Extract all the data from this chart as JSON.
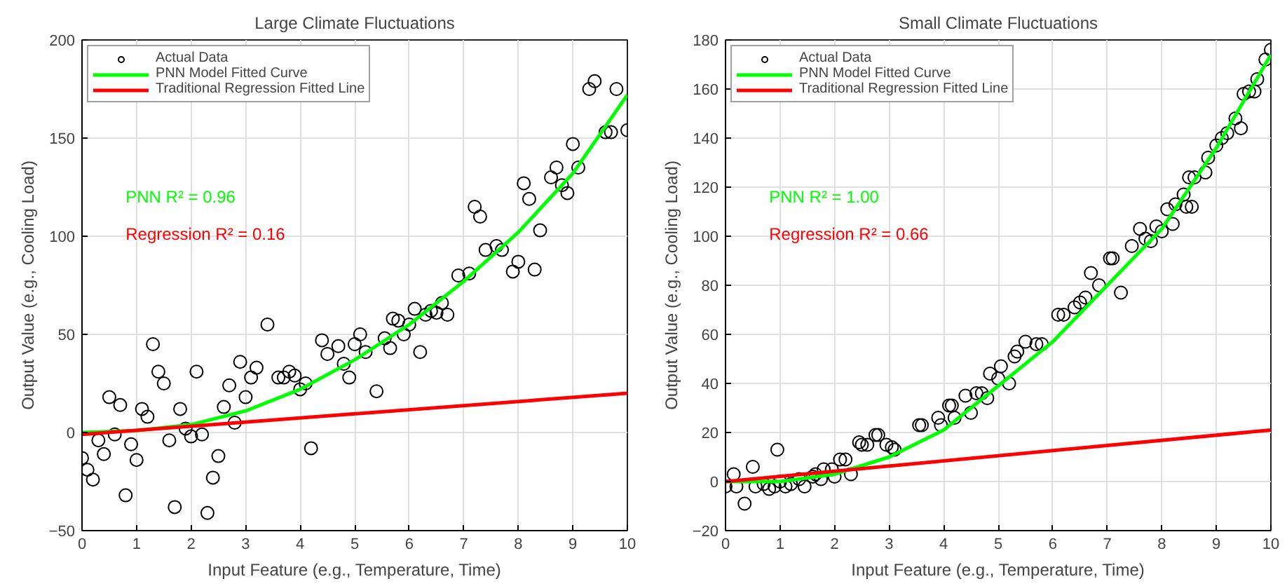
{
  "chart_data": [
    {
      "type": "scatter",
      "title": "Large Climate Fluctuations",
      "xlabel": "Input Feature (e.g., Temperature, Time)",
      "ylabel": "Output Value (e.g., Cooling Load)",
      "xlim": [
        0,
        10
      ],
      "ylim": [
        -50,
        200
      ],
      "xticks": [
        0,
        1,
        2,
        3,
        4,
        5,
        6,
        7,
        8,
        9,
        10
      ],
      "yticks": [
        -50,
        0,
        50,
        100,
        150,
        200
      ],
      "grid": true,
      "legend": "top left",
      "annotations": [
        "PNN R² = 0.96",
        "Regression R² = 0.16"
      ],
      "series": [
        {
          "name": "Actual Data",
          "marker": "circle",
          "color": "#000000",
          "x": [
            0,
            0.1,
            0.2,
            0.3,
            0.4,
            0.5,
            0.6,
            0.7,
            0.8,
            0.9,
            1.0,
            1.1,
            1.2,
            1.3,
            1.4,
            1.5,
            1.6,
            1.7,
            1.8,
            1.9,
            2.0,
            2.1,
            2.2,
            2.3,
            2.4,
            2.5,
            2.6,
            2.7,
            2.8,
            2.9,
            3.0,
            3.1,
            3.2,
            3.4,
            3.6,
            3.7,
            3.8,
            3.9,
            4.0,
            4.1,
            4.2,
            4.4,
            4.5,
            4.7,
            4.8,
            4.9,
            5.0,
            5.1,
            5.2,
            5.4,
            5.55,
            5.65,
            5.7,
            5.8,
            5.9,
            6.0,
            6.1,
            6.2,
            6.3,
            6.4,
            6.5,
            6.6,
            6.7,
            6.9,
            7.1,
            7.2,
            7.3,
            7.4,
            7.6,
            7.7,
            7.9,
            8.0,
            8.1,
            8.2,
            8.3,
            8.4,
            8.6,
            8.7,
            8.8,
            8.9,
            9.0,
            9.1,
            9.3,
            9.4,
            9.6,
            9.7,
            9.8,
            10.0
          ],
          "values": [
            -13,
            -19,
            -24,
            -4,
            -11,
            18,
            -1,
            14,
            -32,
            -6,
            -14,
            12,
            8,
            45,
            31,
            25,
            -4,
            -38,
            12,
            2,
            -2,
            31,
            -1,
            -41,
            -23,
            -12,
            13,
            24,
            5,
            36,
            18,
            28,
            33,
            55,
            28,
            28,
            31,
            29,
            22,
            25,
            -8,
            47,
            40,
            44,
            35,
            28,
            45,
            50,
            41,
            21,
            48,
            43,
            58,
            57,
            50,
            55,
            63,
            41,
            60,
            62,
            61,
            66,
            60,
            80,
            81,
            115,
            110,
            93,
            95,
            93,
            82,
            87,
            127,
            119,
            83,
            103,
            130,
            135,
            126,
            122,
            147,
            135,
            175,
            179,
            153,
            153,
            175,
            154
          ]
        },
        {
          "name": "PNN Model Fitted Curve",
          "type": "line",
          "color": "#00ff00",
          "x": [
            0,
            1,
            2,
            3,
            4,
            5,
            6,
            7,
            8,
            9,
            10
          ],
          "values": [
            0,
            1,
            4,
            11,
            22,
            37,
            55,
            77,
            102,
            132,
            172
          ]
        },
        {
          "name": "Traditional Regression Fitted Line",
          "type": "line",
          "color": "#ff0000",
          "x": [
            0,
            10
          ],
          "values": [
            -1,
            20
          ]
        }
      ]
    },
    {
      "type": "scatter",
      "title": "Small Climate Fluctuations",
      "xlabel": "Input Feature (e.g., Temperature, Time)",
      "ylabel": "Output Value (e.g., Cooling Load)",
      "xlim": [
        0,
        10
      ],
      "ylim": [
        -20,
        180
      ],
      "xticks": [
        0,
        1,
        2,
        3,
        4,
        5,
        6,
        7,
        8,
        9,
        10
      ],
      "yticks": [
        -20,
        0,
        20,
        40,
        60,
        80,
        100,
        120,
        140,
        160,
        180
      ],
      "grid": true,
      "legend": "top left",
      "annotations": [
        "PNN R² = 1.00",
        "Regression R² = 0.66"
      ],
      "series": [
        {
          "name": "Actual Data",
          "marker": "circle",
          "color": "#000000",
          "x": [
            0,
            0.15,
            0.2,
            0.35,
            0.5,
            0.55,
            0.7,
            0.8,
            0.9,
            0.95,
            1.0,
            1.1,
            1.2,
            1.35,
            1.45,
            1.6,
            1.65,
            1.75,
            1.8,
            1.95,
            2.0,
            2.1,
            2.2,
            2.3,
            2.45,
            2.5,
            2.6,
            2.75,
            2.8,
            2.95,
            3.05,
            3.1,
            3.55,
            3.6,
            3.9,
            3.95,
            4.1,
            4.15,
            4.2,
            4.4,
            4.5,
            4.6,
            4.7,
            4.8,
            4.85,
            5.0,
            5.05,
            5.2,
            5.3,
            5.35,
            5.5,
            5.7,
            5.8,
            6.1,
            6.2,
            6.4,
            6.5,
            6.6,
            6.7,
            6.85,
            7.05,
            7.1,
            7.25,
            7.45,
            7.6,
            7.7,
            7.8,
            7.9,
            8.0,
            8.1,
            8.2,
            8.25,
            8.4,
            8.45,
            8.5,
            8.55,
            8.6,
            8.8,
            8.85,
            9.0,
            9.1,
            9.2,
            9.35,
            9.45,
            9.5,
            9.6,
            9.7,
            9.75,
            9.9,
            10.0
          ],
          "values": [
            -2,
            3,
            -2,
            -9,
            6,
            -2,
            -1,
            -3,
            -2,
            13,
            0,
            -2,
            -1,
            1,
            -2,
            2,
            3,
            1,
            5,
            5,
            2,
            9,
            9,
            3,
            16,
            15,
            15,
            19,
            19,
            15,
            14,
            13,
            23,
            23,
            26,
            23,
            31,
            31,
            26,
            35,
            28,
            36,
            36,
            34,
            44,
            42,
            47,
            40,
            51,
            53,
            57,
            56,
            56,
            68,
            68,
            71,
            73,
            75,
            85,
            80,
            91,
            91,
            77,
            96,
            103,
            99,
            98,
            104,
            102,
            111,
            105,
            113,
            117,
            112,
            124,
            112,
            124,
            126,
            132,
            137,
            140,
            142,
            148,
            144,
            158,
            159,
            159,
            164,
            172,
            176
          ]
        },
        {
          "name": "PNN Model Fitted Curve",
          "type": "line",
          "color": "#00ff00",
          "x": [
            0,
            1,
            2,
            3,
            4,
            5,
            6,
            7,
            8,
            9,
            10
          ],
          "values": [
            0,
            0,
            3,
            10,
            21,
            39,
            57,
            80,
            103,
            136,
            174
          ]
        },
        {
          "name": "Traditional Regression Fitted Line",
          "type": "line",
          "color": "#ff0000",
          "x": [
            0,
            10
          ],
          "values": [
            0,
            21
          ]
        }
      ]
    }
  ]
}
